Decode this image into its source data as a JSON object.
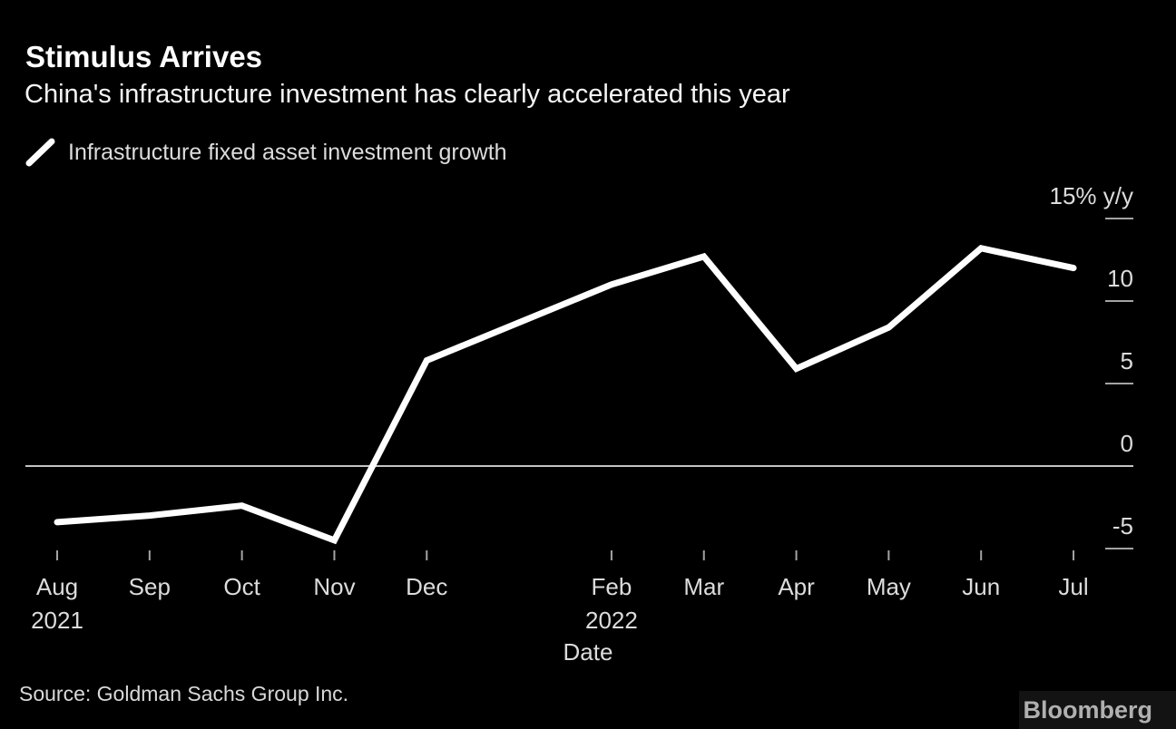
{
  "chart_data": {
    "type": "line",
    "title": "Stimulus Arrives",
    "subtitle": "China's infrastructure investment has clearly accelerated this year",
    "legend": [
      "Infrastructure fixed asset investment growth"
    ],
    "legend_position": "top-left",
    "xlabel": "Date",
    "unit_top_label": "15% y/y",
    "grid": false,
    "ylim": [
      -5,
      15
    ],
    "yticks": [
      {
        "label": "15% y/y",
        "value": 15
      },
      {
        "label": "10",
        "value": 10
      },
      {
        "label": "5",
        "value": 5
      },
      {
        "label": "0",
        "value": 0,
        "full_line": true
      },
      {
        "label": "-5",
        "value": -5
      }
    ],
    "points": [
      {
        "label": "Aug",
        "sub": "2021",
        "slot": 0,
        "value": -3.4
      },
      {
        "label": "Sep",
        "slot": 1,
        "value": -3.0
      },
      {
        "label": "Oct",
        "slot": 2,
        "value": -2.4
      },
      {
        "label": "Nov",
        "slot": 3,
        "value": -4.5
      },
      {
        "label": "Dec",
        "slot": 4,
        "value": 6.4
      },
      {
        "label": "Feb",
        "sub": "2022",
        "slot": 6,
        "value": 11.0
      },
      {
        "label": "Mar",
        "slot": 7,
        "value": 12.7
      },
      {
        "label": "Apr",
        "slot": 8,
        "value": 5.9
      },
      {
        "label": "May",
        "slot": 9,
        "value": 8.4
      },
      {
        "label": "Jun",
        "slot": 10,
        "value": 13.2
      },
      {
        "label": "Jul",
        "slot": 11,
        "value": 12.0
      }
    ],
    "n_slots": 12
  },
  "footer": {
    "source": "Source: Goldman Sachs Group Inc.",
    "logo": "Bloomberg"
  },
  "colors": {
    "background": "#000000",
    "series_line": "#ffffff",
    "zero_line": "#c4c4c4",
    "tick": "#a3a3a3",
    "axis_text": "#dcdcdc",
    "title_text": "#ffffff",
    "logo_box": "#131313",
    "logo_text": "#b0b0b0"
  }
}
